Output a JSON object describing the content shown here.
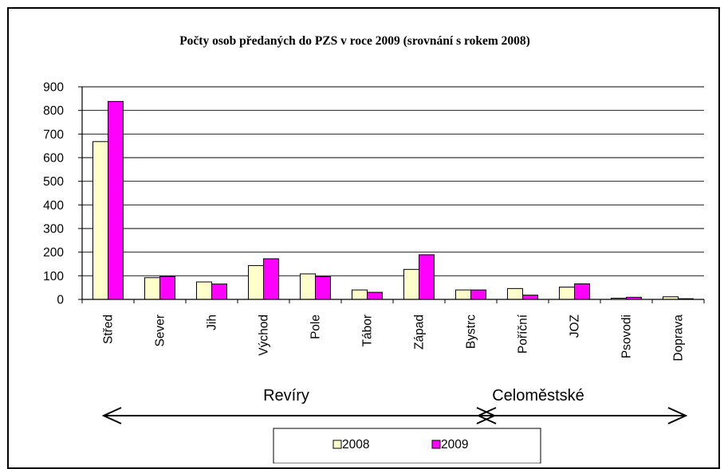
{
  "chart_data": {
    "type": "bar",
    "title": "Počty osob předaných do PZS v roce 2009 (srovnání s rokem 2008)",
    "categories": [
      "Střed",
      "Sever",
      "Jih",
      "Východ",
      "Pole",
      "Tábor",
      "Západ",
      "Bystrc",
      "Poříční",
      "JOZ",
      "Psovodi",
      "Doprava"
    ],
    "series": [
      {
        "name": "2008",
        "color": "#FFFFCC",
        "values": [
          668,
          92,
          74,
          143,
          108,
          40,
          127,
          40,
          46,
          52,
          5,
          11
        ]
      },
      {
        "name": "2009",
        "color": "#FF00FF",
        "values": [
          838,
          97,
          65,
          172,
          96,
          30,
          189,
          40,
          18,
          66,
          9,
          3
        ]
      }
    ],
    "ylim": [
      0,
      900
    ],
    "yticks": [
      0,
      100,
      200,
      300,
      400,
      500,
      600,
      700,
      800,
      900
    ],
    "grid": true,
    "legend_position": "bottom",
    "groups": [
      {
        "label": "Revíry"
      },
      {
        "label": "Celoměstské"
      }
    ]
  }
}
